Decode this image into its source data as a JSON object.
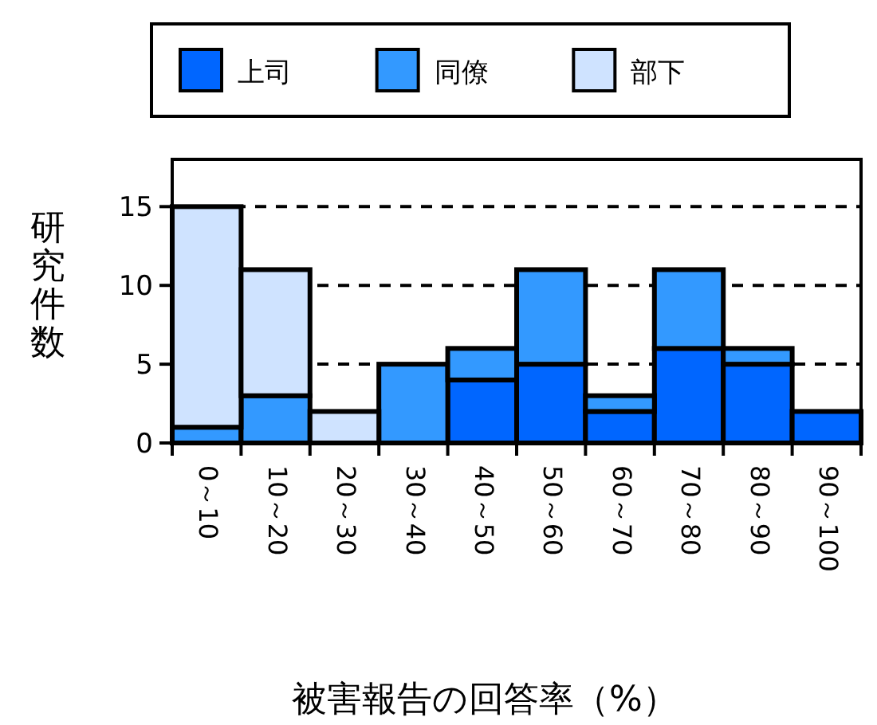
{
  "chart_data": {
    "type": "bar",
    "stacked": true,
    "xlabel": "被害報告の回答率（%）",
    "ylabel": "研究件数",
    "categories": [
      "0～10",
      "10～20",
      "20～30",
      "30～40",
      "40～50",
      "50～60",
      "60～70",
      "70～80",
      "80～90",
      "90～100"
    ],
    "series": [
      {
        "name": "上司",
        "color": "#0066ff",
        "values": [
          0,
          0,
          0,
          0,
          4,
          5,
          2,
          6,
          5,
          2
        ]
      },
      {
        "name": "同僚",
        "color": "#3399ff",
        "values": [
          1,
          3,
          0,
          5,
          2,
          6,
          1,
          5,
          1,
          0
        ]
      },
      {
        "name": "部下",
        "color": "#cfe3ff",
        "values": [
          14,
          8,
          2,
          0,
          0,
          0,
          0,
          0,
          0,
          0
        ]
      }
    ],
    "ylim": [
      0,
      18
    ],
    "yticks": [
      0,
      5,
      10,
      15
    ],
    "grid": "y",
    "legend": "top"
  }
}
